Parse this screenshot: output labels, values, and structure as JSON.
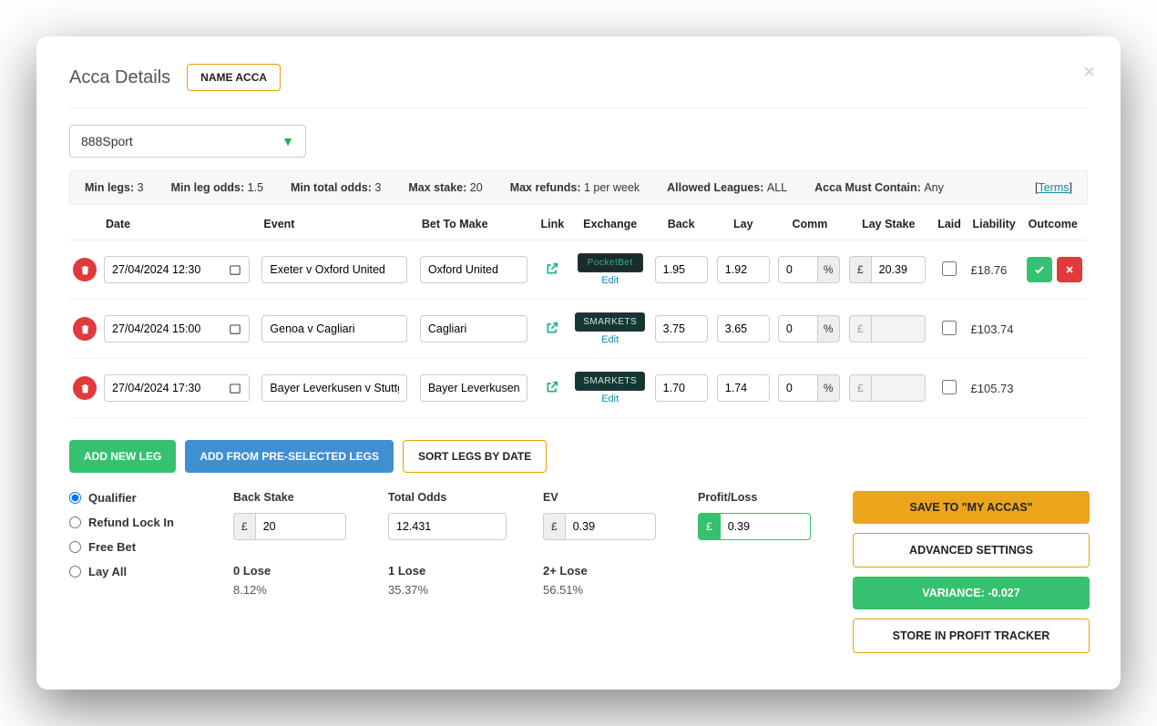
{
  "header": {
    "title": "Acca Details",
    "name_acca": "NAME ACCA"
  },
  "bookmaker": "888Sport",
  "rules": {
    "min_legs_label": "Min legs:",
    "min_legs": "3",
    "min_leg_odds_label": "Min leg odds:",
    "min_leg_odds": "1.5",
    "min_total_odds_label": "Min total odds:",
    "min_total_odds": "3",
    "max_stake_label": "Max stake:",
    "max_stake": "20",
    "max_refunds_label": "Max refunds:",
    "max_refunds": "1 per week",
    "allowed_leagues_label": "Allowed Leagues:",
    "allowed_leagues": "ALL",
    "must_contain_label": "Acca Must Contain:",
    "must_contain": "Any",
    "terms": "Terms"
  },
  "columns": {
    "date": "Date",
    "event": "Event",
    "bet": "Bet To Make",
    "link": "Link",
    "exchange": "Exchange",
    "back": "Back",
    "lay": "Lay",
    "comm": "Comm",
    "laystake": "Lay Stake",
    "laid": "Laid",
    "liability": "Liability",
    "outcome": "Outcome"
  },
  "rows": [
    {
      "date": "27/04/2024 12:30",
      "event": "Exeter v Oxford United",
      "bet": "Oxford United",
      "exchange": "PocketBet",
      "exchange_bg": "#1b2b2b",
      "exchange_fg": "#2fb787",
      "back": "1.95",
      "lay": "1.92",
      "comm": "0",
      "lay_stake": "20.39",
      "lay_stake_active": true,
      "liability": "£18.76",
      "has_outcome": true
    },
    {
      "date": "27/04/2024 15:00",
      "event": "Genoa v Cagliari",
      "bet": "Cagliari",
      "exchange": "SMARKETS",
      "exchange_bg": "#143733",
      "exchange_fg": "#cfe8e3",
      "back": "3.75",
      "lay": "3.65",
      "comm": "0",
      "lay_stake": "",
      "lay_stake_active": false,
      "liability": "£103.74",
      "has_outcome": false
    },
    {
      "date": "27/04/2024 17:30",
      "event": "Bayer Leverkusen v Stuttgart",
      "bet": "Bayer Leverkusen",
      "exchange": "SMARKETS",
      "exchange_bg": "#143733",
      "exchange_fg": "#cfe8e3",
      "back": "1.70",
      "lay": "1.74",
      "comm": "0",
      "lay_stake": "",
      "lay_stake_active": false,
      "liability": "£105.73",
      "has_outcome": false
    }
  ],
  "edit_label": "Edit",
  "pct": "%",
  "cur": "£",
  "actions": {
    "add_leg": "ADD NEW LEG",
    "add_pre": "ADD FROM PRE-SELECTED LEGS",
    "sort": "SORT LEGS BY DATE"
  },
  "radio": {
    "qualifier": "Qualifier",
    "refund": "Refund Lock In",
    "freebet": "Free Bet",
    "layall": "Lay All"
  },
  "stats": {
    "back_stake_label": "Back Stake",
    "back_stake": "20",
    "total_odds_label": "Total Odds",
    "total_odds": "12.431",
    "ev_label": "EV",
    "ev": "0.39",
    "pl_label": "Profit/Loss",
    "pl": "0.39",
    "lose0_label": "0 Lose",
    "lose0": "8.12%",
    "lose1_label": "1 Lose",
    "lose1": "35.37%",
    "lose2_label": "2+ Lose",
    "lose2": "56.51%"
  },
  "right": {
    "save": "SAVE TO \"MY ACCAS\"",
    "advanced": "ADVANCED SETTINGS",
    "variance": "VARIANCE: -0.027",
    "store": "STORE IN PROFIT TRACKER"
  }
}
